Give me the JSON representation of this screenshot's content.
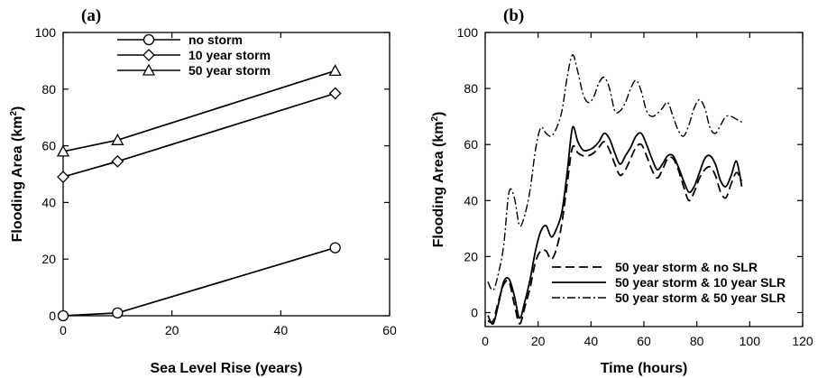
{
  "chart_data": [
    {
      "type": "line",
      "panel_label": "(a)",
      "xlabel": "Sea Level Rise (years)",
      "ylabel_main": "Flooding Area (km",
      "ylabel_sup": "2",
      "ylabel_close": ")",
      "xlim": [
        0,
        60
      ],
      "ylim": [
        0,
        100
      ],
      "xticks": [
        "0",
        "20",
        "40",
        "60"
      ],
      "yticks": [
        "0",
        "20",
        "40",
        "60",
        "80",
        "100"
      ],
      "legend_placement": "top-center",
      "series": [
        {
          "name": "no storm",
          "marker": "circle",
          "x": [
            0,
            10,
            50
          ],
          "y": [
            0,
            1,
            24
          ]
        },
        {
          "name": "10 year storm",
          "marker": "diamond",
          "x": [
            0,
            10,
            50
          ],
          "y": [
            49,
            54.5,
            78.5
          ]
        },
        {
          "name": "50 year storm",
          "marker": "triangle",
          "x": [
            0,
            10,
            50
          ],
          "y": [
            58,
            62,
            86.5
          ]
        }
      ]
    },
    {
      "type": "line",
      "panel_label": "(b)",
      "xlabel": "Time (hours)",
      "ylabel_main": "Flooding Area (km",
      "ylabel_sup": "2",
      "ylabel_close": ")",
      "xlim": [
        0,
        120
      ],
      "ylim": [
        -5,
        100
      ],
      "xticks": [
        "0",
        "20",
        "40",
        "60",
        "80",
        "100",
        "120"
      ],
      "yticks": [
        "0",
        "20",
        "40",
        "60",
        "80",
        "100"
      ],
      "legend_placement": "bottom-right",
      "series": [
        {
          "name": "50 year storm & no SLR",
          "style": "dashed",
          "x": [
            1,
            3,
            5,
            7,
            9,
            11,
            13,
            15,
            17,
            19,
            21,
            23,
            25,
            27,
            29,
            31,
            33,
            35,
            37,
            39,
            41,
            43,
            45,
            47,
            49,
            51,
            53,
            55,
            57,
            59,
            61,
            63,
            65,
            67,
            69,
            71,
            73,
            75,
            77,
            79,
            81,
            83,
            85,
            87,
            89,
            91,
            93,
            95,
            97
          ],
          "y": [
            -3,
            -3,
            4,
            10,
            11,
            3,
            -4,
            2,
            9,
            18,
            22,
            22,
            19,
            23,
            32,
            46,
            59,
            57,
            56,
            56,
            57,
            59,
            61,
            58,
            53,
            49,
            51,
            55,
            59,
            60,
            56,
            51,
            48,
            51,
            55,
            55,
            51,
            45,
            40,
            43,
            48,
            51,
            52,
            49,
            43,
            41,
            46,
            50,
            47
          ]
        },
        {
          "name": "50 year storm & 10 year SLR",
          "style": "solid",
          "x": [
            1,
            3,
            5,
            7,
            9,
            11,
            13,
            15,
            17,
            19,
            21,
            23,
            25,
            27,
            29,
            31,
            33,
            35,
            37,
            39,
            41,
            43,
            45,
            47,
            49,
            51,
            53,
            55,
            57,
            59,
            61,
            63,
            65,
            67,
            69,
            71,
            73,
            75,
            77,
            79,
            81,
            83,
            85,
            87,
            89,
            91,
            93,
            95,
            97
          ],
          "y": [
            -1,
            -4,
            3,
            11,
            12,
            6,
            -2,
            4,
            12,
            22,
            29,
            31,
            27,
            30,
            36,
            50,
            66,
            61,
            58,
            58,
            59,
            61,
            64,
            62,
            57,
            53,
            56,
            59,
            63,
            64,
            60,
            55,
            51,
            53,
            56,
            56,
            52,
            47,
            43,
            45,
            50,
            55,
            56,
            53,
            47,
            45,
            49,
            54,
            45
          ]
        },
        {
          "name": "50 year storm & 50 year SLR",
          "style": "dashdot",
          "x": [
            1,
            3,
            5,
            7,
            9,
            11,
            13,
            15,
            17,
            19,
            21,
            23,
            25,
            27,
            29,
            31,
            33,
            35,
            37,
            39,
            41,
            43,
            45,
            47,
            49,
            51,
            53,
            55,
            57,
            59,
            61,
            63,
            65,
            67,
            69,
            71,
            73,
            75,
            77,
            79,
            81,
            83,
            85,
            87,
            89,
            91,
            93,
            95,
            97
          ],
          "y": [
            11,
            8,
            14,
            24,
            43,
            41,
            31,
            35,
            44,
            58,
            66,
            64,
            63,
            66,
            72,
            84,
            92,
            86,
            78,
            75,
            77,
            82,
            84,
            80,
            72,
            72,
            75,
            80,
            83,
            79,
            72,
            70,
            71,
            73,
            75,
            70,
            65,
            63,
            67,
            73,
            76,
            73,
            66,
            64,
            67,
            70,
            70,
            69,
            68
          ]
        }
      ]
    }
  ]
}
